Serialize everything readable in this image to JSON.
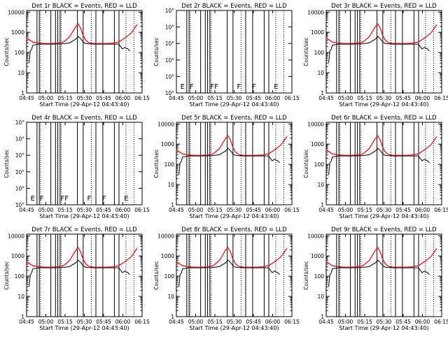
{
  "colors": {
    "events": "#000000",
    "lld": "#ff0000",
    "axes": "#000000",
    "background": "#ffffff"
  },
  "common": {
    "xlabel": "Start Time (29-Apr-12 04:43:40)",
    "ylabel": "Counts/sec",
    "xticks": [
      "04:45",
      "05:00",
      "05:15",
      "05:30",
      "05:45",
      "06:00",
      "06:15"
    ],
    "yticks_log": [
      "1",
      "10",
      "100",
      "1000",
      "10000"
    ],
    "yticks_empty": [
      "10°",
      "10°",
      "10°",
      "10°",
      "10°",
      "10°"
    ],
    "bar_letters": [
      "E",
      "F",
      "FF",
      "F",
      "F",
      "E"
    ]
  },
  "chart_data": [
    {
      "type": "line",
      "title": "Det 1r BLACK = Events, RED = LLD",
      "has_data": true
    },
    {
      "type": "line",
      "title": "Det 2r BLACK = Events, RED = LLD",
      "has_data": false
    },
    {
      "type": "line",
      "title": "Det 3r BLACK = Events, RED = LLD",
      "has_data": true
    },
    {
      "type": "line",
      "title": "Det 4r BLACK = Events, RED = LLD",
      "has_data": false
    },
    {
      "type": "line",
      "title": "Det 5r BLACK = Events, RED = LLD",
      "has_data": true
    },
    {
      "type": "line",
      "title": "Det 6r BLACK = Events, RED = LLD",
      "has_data": true
    },
    {
      "type": "line",
      "title": "Det 7r BLACK = Events, RED = LLD",
      "has_data": true
    },
    {
      "type": "line",
      "title": "Det 8r BLACK = Events, RED = LLD",
      "has_data": true
    },
    {
      "type": "line",
      "title": "Det 9r BLACK = Events, RED = LLD",
      "has_data": true
    }
  ],
  "series_shape": {
    "x_minutes": [
      0,
      5,
      10,
      15,
      20,
      25,
      30,
      35,
      40,
      42,
      44,
      46,
      48,
      50,
      52,
      55,
      60,
      65,
      70,
      75,
      80,
      85,
      88,
      90
    ],
    "lld_values": [
      520,
      330,
      290,
      280,
      280,
      290,
      330,
      600,
      1900,
      2600,
      1600,
      700,
      420,
      320,
      290,
      280,
      280,
      280,
      290,
      330,
      520,
      900,
      1600,
      2400
    ],
    "events_x": [
      2,
      3,
      4,
      5,
      10,
      20,
      30,
      35,
      40,
      42,
      44,
      46,
      48,
      50,
      55,
      65,
      75,
      78,
      80,
      81,
      82,
      84
    ],
    "events_values": [
      30,
      120,
      140,
      230,
      260,
      260,
      270,
      300,
      460,
      620,
      480,
      330,
      280,
      270,
      260,
      260,
      260,
      150,
      180,
      160,
      160,
      120
    ],
    "xrange_minutes": [
      0,
      94
    ],
    "yrange": [
      1,
      12000
    ]
  }
}
